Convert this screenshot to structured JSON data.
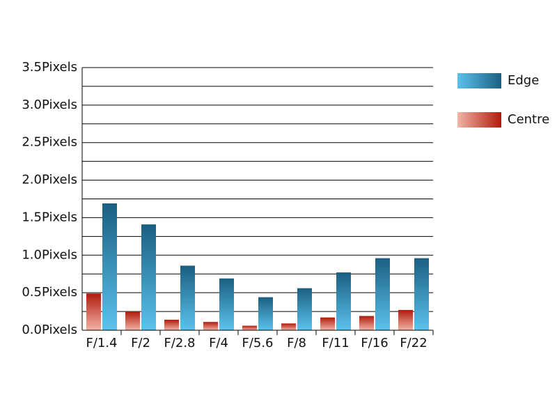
{
  "chart_data": {
    "type": "bar",
    "categories": [
      "F/1.4",
      "F/2",
      "F/2.8",
      "F/4",
      "F/5.6",
      "F/8",
      "F/11",
      "F/16",
      "F/22"
    ],
    "series": [
      {
        "name": "Edge",
        "color": "#1a6385",
        "gradient": [
          "#1a5f80",
          "#5cc2ee"
        ],
        "values": [
          1.69,
          1.41,
          0.86,
          0.69,
          0.44,
          0.56,
          0.77,
          0.96,
          0.96
        ]
      },
      {
        "name": "Centre",
        "color": "#b31c0e",
        "gradient": [
          "#b01a0c",
          "#f2b4a6"
        ],
        "values": [
          0.49,
          0.25,
          0.14,
          0.11,
          0.06,
          0.09,
          0.17,
          0.19,
          0.27
        ]
      }
    ],
    "ylim": [
      0,
      3.5
    ],
    "yticks": [
      {
        "value": 0,
        "label": "0.0Pixels"
      },
      {
        "value": 0.5,
        "label": "0.5Pixels"
      },
      {
        "value": 1,
        "label": "1.0Pixels"
      },
      {
        "value": 1.5,
        "label": "1.5Pixels"
      },
      {
        "value": 2,
        "label": "2.0Pixels"
      },
      {
        "value": 2.5,
        "label": "2.5Pixels"
      },
      {
        "value": 3,
        "label": "3.0Pixels"
      },
      {
        "value": 3.5,
        "label": "3.5Pixels"
      }
    ],
    "minor_yticks": [
      0.25,
      0.75,
      1.25,
      1.75,
      2.25,
      2.75,
      3.25
    ],
    "grid": true,
    "legend": "right"
  }
}
